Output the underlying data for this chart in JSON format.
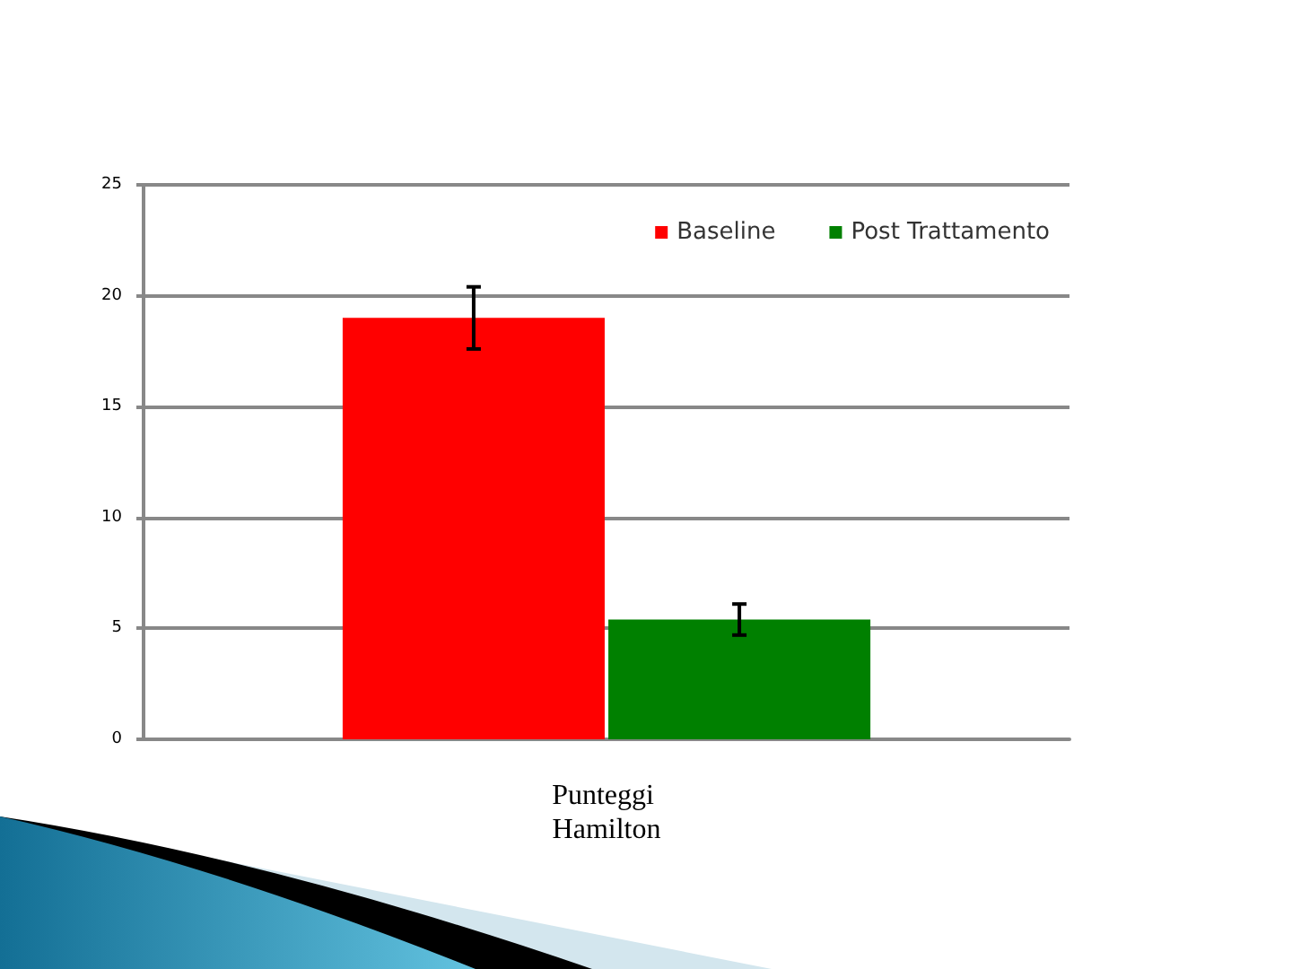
{
  "chart_data": {
    "type": "bar",
    "categories": [
      "Punteggi Hamilton"
    ],
    "series": [
      {
        "name": "Baseline",
        "color": "#ff0000",
        "values": [
          19
        ],
        "errors": [
          1.4
        ]
      },
      {
        "name": "Post Trattamento",
        "color": "#008000",
        "values": [
          5.4
        ],
        "errors": [
          0.7
        ]
      }
    ],
    "ylim": [
      0,
      25
    ],
    "yticks": [
      0,
      5,
      10,
      15,
      20,
      25
    ],
    "grid": "y",
    "legend": "top right"
  }
}
